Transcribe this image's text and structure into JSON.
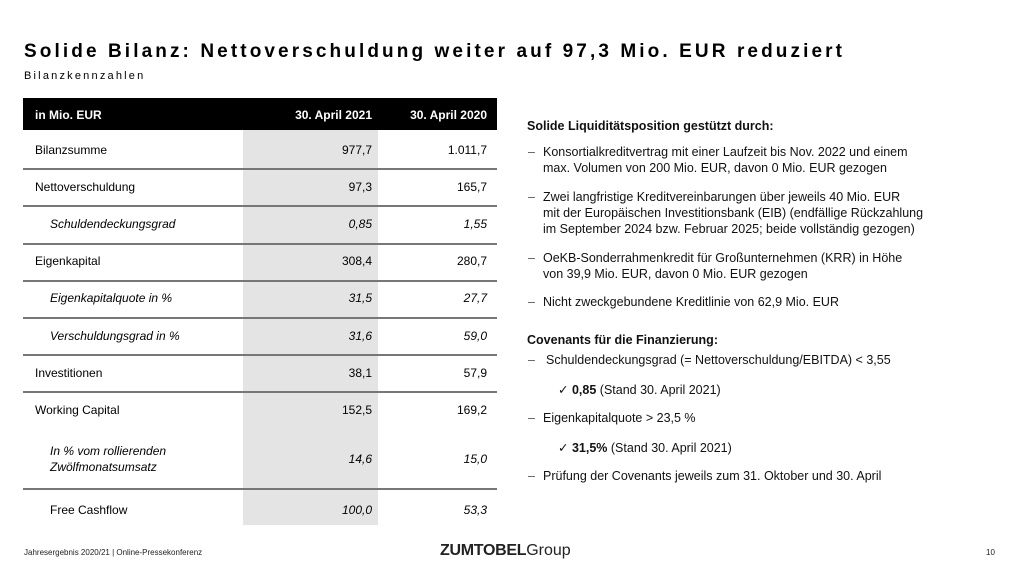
{
  "title": "Solide Bilanz: Nettoverschuldung weiter auf 97,3 Mio. EUR reduziert",
  "subtitle": "Bilanzkennzahlen",
  "table": {
    "headers": [
      "in Mio. EUR",
      "30. April 2021",
      "30. April 2020"
    ],
    "rows": [
      {
        "label": "Bilanzsumme",
        "v2021": "977,7",
        "v2020": "1.011,7"
      },
      {
        "label": "Nettoverschuldung",
        "v2021": "97,3",
        "v2020": "165,7"
      },
      {
        "label": "Schuldendeckungsgrad",
        "v2021": "0,85",
        "v2020": "1,55"
      },
      {
        "label": "Eigenkapital",
        "v2021": "308,4",
        "v2020": "280,7"
      },
      {
        "label": "Eigenkapitalquote in %",
        "v2021": "31,5",
        "v2020": "27,7"
      },
      {
        "label": "Verschuldungsgrad in %",
        "v2021": "31,6",
        "v2020": "59,0"
      },
      {
        "label": "Investitionen",
        "v2021": "38,1",
        "v2020": "57,9"
      },
      {
        "label": "Working Capital",
        "v2021": "152,5",
        "v2020": "169,2"
      },
      {
        "label": "In % vom rollierenden",
        "label2": "Zwölfmonatsumsatz",
        "v2021": "14,6",
        "v2020": "15,0"
      },
      {
        "label": "Free Cashflow",
        "v2021": "100,0",
        "v2020": "53,3"
      }
    ]
  },
  "liquidity": {
    "heading": "Solide Liquiditätsposition gestützt durch:",
    "bullets": [
      [
        "Konsortialkreditvertrag mit einer Laufzeit bis Nov. 2022 und einem",
        "max. Volumen von 200 Mio. EUR, davon 0 Mio. EUR gezogen"
      ],
      [
        "Zwei langfristige Kreditvereinbarungen über jeweils 40 Mio. EUR",
        "mit der Europäischen Investitionsbank (EIB) (endfällige Rückzahlung",
        "im September 2024 bzw. Februar 2025; beide vollständig gezogen)"
      ],
      [
        "OeKB-Sonderrahmenkredit für Großunternehmen (KRR) in Höhe",
        "von 39,9 Mio. EUR, davon 0 Mio. EUR gezogen"
      ],
      [
        "Nicht zweckgebundene Kreditlinie von 62,9 Mio. EUR"
      ]
    ]
  },
  "covenants": {
    "heading": "Covenants für die Finanzierung:",
    "item1": "Schuldendeckungsgrad (= Nettoverschuldung/EBITDA) < 3,55",
    "check1_value": "0,85",
    "check1_text": "(Stand 30. April 2021)",
    "item2": "Eigenkapitalquote  > 23,5 %",
    "check2_value": "31,5%",
    "check2_text": "(Stand 30. April 2021)",
    "item3": "Prüfung der Covenants jeweils zum 31. Oktober und 30. April"
  },
  "footer": {
    "text": "Jahresergebnis 2020/21 | Online-Pressekonferenz",
    "logo_bold": "ZUMTOBEL",
    "logo_light": "Group",
    "page": "10"
  },
  "icons": {
    "bullet": "dash",
    "check": "checkmark-icon"
  }
}
